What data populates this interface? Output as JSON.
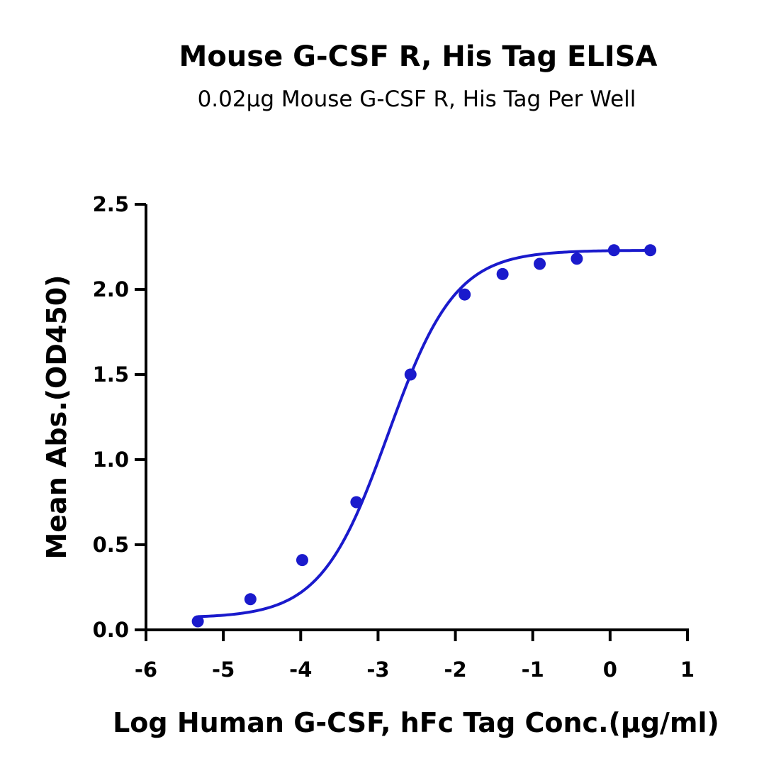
{
  "chart_data": {
    "type": "scatter",
    "title": "Mouse G-CSF R, His Tag ELISA",
    "subtitle": "0.02µg Mouse G-CSF R, His Tag Per Well",
    "xlabel": "Log Human G-CSF, hFc Tag Conc.(µg/ml)",
    "ylabel": "Mean Abs.(OD450)",
    "xlim": [
      -6,
      1
    ],
    "ylim": [
      0,
      2.5
    ],
    "xticks": [
      "-6",
      "-5",
      "-4",
      "-3",
      "-2",
      "-1",
      "0",
      "1"
    ],
    "yticks": [
      "0.0",
      "0.5",
      "1.0",
      "1.5",
      "2.0",
      "2.5"
    ],
    "grid": false,
    "color": "#1a1acc",
    "series": [
      {
        "x": [
          -5.33,
          -4.65,
          -3.98,
          -3.28,
          -2.58,
          -1.88,
          -1.39,
          -0.91,
          -0.43,
          0.05,
          0.52
        ],
        "y": [
          0.05,
          0.18,
          0.41,
          0.75,
          1.5,
          1.97,
          2.09,
          2.15,
          2.18,
          2.23,
          2.23
        ]
      }
    ],
    "fit": {
      "type": "4PL",
      "bottom": 0.07,
      "top": 2.23,
      "logEC50": -2.87,
      "hill": 1.0,
      "x_range": [
        -5.33,
        0.52
      ]
    }
  }
}
